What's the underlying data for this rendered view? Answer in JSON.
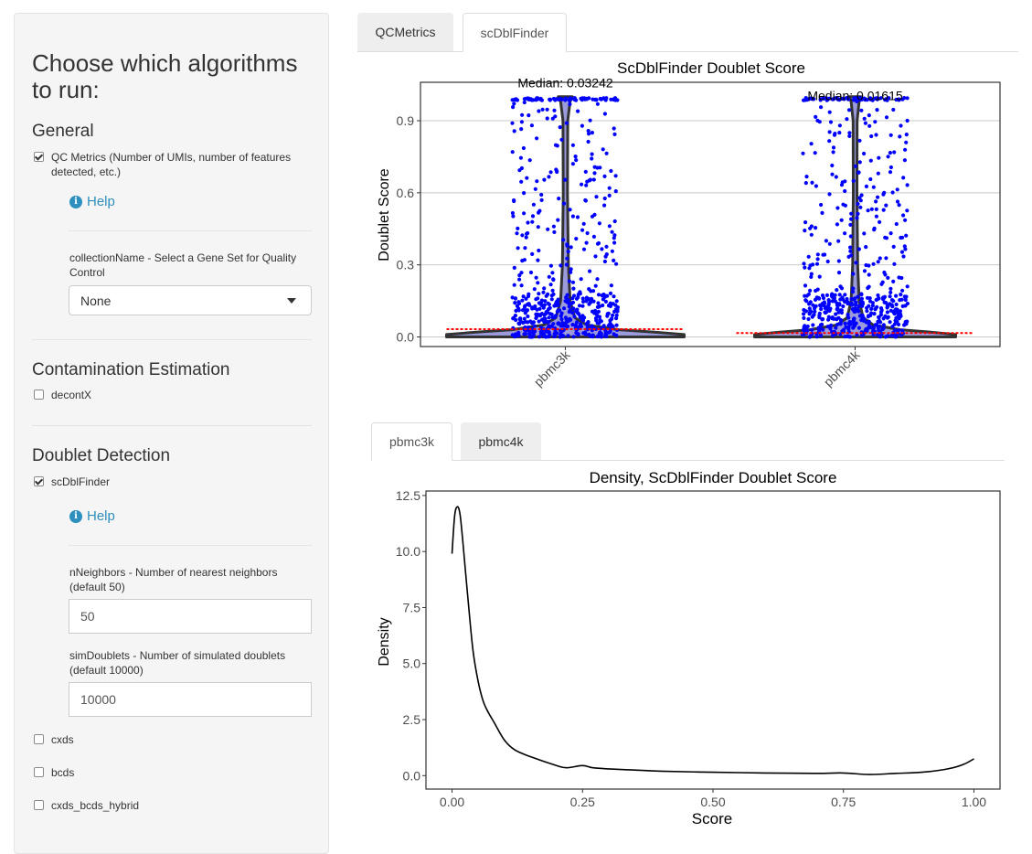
{
  "sidebar": {
    "title": "Choose which algorithms to run:",
    "general": {
      "heading": "General",
      "qc_metrics": {
        "label": "QC Metrics (Number of UMIs, number of features detected, etc.)",
        "checked": true
      },
      "help_label": "Help",
      "collection_label": "collectionName - Select a Gene Set for Quality Control",
      "collection_value": "None"
    },
    "contamination": {
      "heading": "Contamination Estimation",
      "decontx": {
        "label": "decontX",
        "checked": false
      }
    },
    "doublet": {
      "heading": "Doublet Detection",
      "scdblfinder": {
        "label": "scDblFinder",
        "checked": true
      },
      "help_label": "Help",
      "nneighbors_label": "nNeighbors - Number of nearest neighbors (default 50)",
      "nneighbors_value": "50",
      "simdoublets_label": "simDoublets - Number of simulated doublets (default 10000)",
      "simdoublets_value": "10000",
      "cxds": {
        "label": "cxds",
        "checked": false
      },
      "bcds": {
        "label": "bcds",
        "checked": false
      },
      "hybrid": {
        "label": "cxds_bcds_hybrid",
        "checked": false
      }
    }
  },
  "main_tabs": [
    {
      "label": "QCMetrics",
      "active": false
    },
    {
      "label": "scDblFinder",
      "active": true
    }
  ],
  "sample_tabs": [
    {
      "label": "pbmc3k",
      "active": true
    },
    {
      "label": "pbmc4k",
      "active": false
    }
  ],
  "colors": {
    "points": "#0000ff",
    "violin_fill": "#8a8ad6",
    "median_line": "#ff0000",
    "help": "#2c8fbd"
  },
  "chart_data": [
    {
      "type": "violin",
      "title": "ScDblFinder Doublet Score",
      "ylabel": "Doublet Score",
      "xlabel": "",
      "categories": [
        "pbmc3k",
        "pbmc4k"
      ],
      "annotations": [
        "Median: 0.03242",
        "Median: 0.01615"
      ],
      "medians": [
        0.03242,
        0.01615
      ],
      "ylim": [
        -0.04,
        1.06
      ],
      "yticks": [
        0.0,
        0.3,
        0.6,
        0.9
      ],
      "ytick_labels": [
        "0.0",
        "0.3",
        "0.6",
        "0.9"
      ],
      "grid": true
    },
    {
      "type": "line",
      "title": "Density, ScDblFinder Doublet Score",
      "xlabel": "Score",
      "ylabel": "Density",
      "xlim": [
        -0.05,
        1.05
      ],
      "ylim": [
        -0.6,
        12.7
      ],
      "xticks": [
        0.0,
        0.25,
        0.5,
        0.75,
        1.0
      ],
      "xtick_labels": [
        "0.00",
        "0.25",
        "0.50",
        "0.75",
        "1.00"
      ],
      "yticks": [
        0.0,
        2.5,
        5.0,
        7.5,
        10.0,
        12.5
      ],
      "ytick_labels": [
        "0.0",
        "2.5",
        "5.0",
        "7.5",
        "10.0",
        "12.5"
      ],
      "x": [
        0.0,
        0.005,
        0.01,
        0.015,
        0.02,
        0.03,
        0.04,
        0.05,
        0.06,
        0.07,
        0.08,
        0.1,
        0.12,
        0.15,
        0.2,
        0.22,
        0.25,
        0.27,
        0.3,
        0.35,
        0.4,
        0.5,
        0.6,
        0.7,
        0.75,
        0.8,
        0.85,
        0.9,
        0.95,
        0.98,
        1.0
      ],
      "y": [
        9.9,
        11.6,
        12.0,
        11.7,
        10.6,
        8.0,
        5.6,
        4.2,
        3.3,
        2.8,
        2.4,
        1.6,
        1.15,
        0.85,
        0.45,
        0.35,
        0.45,
        0.35,
        0.3,
        0.25,
        0.2,
        0.15,
        0.12,
        0.1,
        0.12,
        0.05,
        0.1,
        0.15,
        0.3,
        0.5,
        0.75
      ]
    }
  ]
}
